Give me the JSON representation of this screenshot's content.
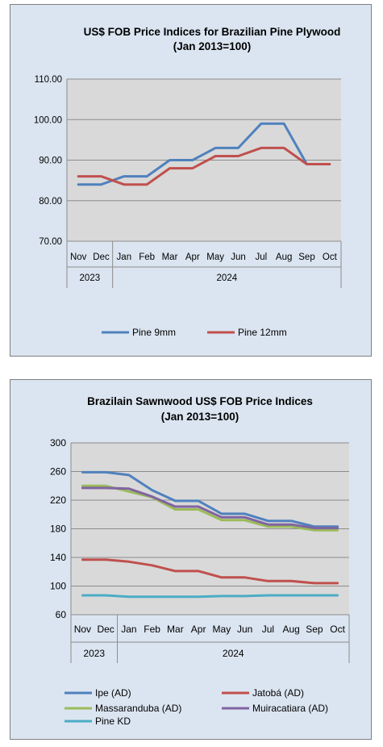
{
  "chart_data": [
    {
      "type": "line",
      "title": "US$ FOB Price Indices for Brazilian  Pine Plywood",
      "subtitle": "(Jan 2013=100)",
      "categories": [
        "Nov",
        "Dec",
        "Jan",
        "Feb",
        "Mar",
        "Apr",
        "May",
        "Jun",
        "Jul",
        "Aug",
        "Sep",
        "Oct"
      ],
      "year_groups": [
        {
          "label": "2023",
          "count": 2
        },
        {
          "label": "2024",
          "count": 10
        }
      ],
      "y_ticks": [
        "110.00",
        "100.00",
        "90.00",
        "80.00",
        "70.00"
      ],
      "ylim": [
        70,
        110
      ],
      "grid": true,
      "legend_position": "bottom",
      "series": [
        {
          "name": "Pine 9mm",
          "color": "#4f81bd",
          "values": [
            84,
            84,
            86,
            86,
            90,
            90,
            93,
            93,
            99,
            99,
            89,
            89
          ]
        },
        {
          "name": "Pine 12mm",
          "color": "#c0504d",
          "values": [
            86,
            86,
            84,
            84,
            88,
            88,
            91,
            91,
            93,
            93,
            89,
            89
          ]
        }
      ]
    },
    {
      "type": "line",
      "title": "Brazilain Sawnwood US$ FOB Price Indices",
      "subtitle": "(Jan 2013=100)",
      "categories": [
        "Nov",
        "Dec",
        "Jan",
        "Feb",
        "Mar",
        "Apr",
        "May",
        "Jun",
        "Jul",
        "Aug",
        "Sep",
        "Oct"
      ],
      "year_groups": [
        {
          "label": "2023",
          "count": 2
        },
        {
          "label": "2024",
          "count": 10
        }
      ],
      "y_ticks": [
        "300",
        "260",
        "220",
        "180",
        "140",
        "100",
        "60"
      ],
      "ylim": [
        60,
        300
      ],
      "grid": true,
      "legend_position": "bottom",
      "series": [
        {
          "name": "Ipe (AD)",
          "color": "#4f81bd",
          "values": [
            259,
            259,
            255,
            234,
            219,
            219,
            201,
            201,
            191,
            191,
            183,
            183
          ]
        },
        {
          "name": "Jatobá (AD)",
          "color": "#c0504d",
          "values": [
            137,
            137,
            134,
            129,
            121,
            121,
            112,
            112,
            107,
            107,
            104,
            104
          ]
        },
        {
          "name": "Massaranduba (AD)",
          "color": "#9bbb59",
          "values": [
            240,
            240,
            232,
            224,
            207,
            207,
            192,
            192,
            183,
            183,
            178,
            178
          ]
        },
        {
          "name": "Muiracatiara (AD)",
          "color": "#8064a2",
          "values": [
            237,
            237,
            236,
            225,
            211,
            211,
            196,
            196,
            186,
            186,
            181,
            181
          ]
        },
        {
          "name": "Pine KD",
          "color": "#4bacc6",
          "values": [
            87,
            87,
            85,
            85,
            85,
            85,
            86,
            86,
            87,
            87,
            87,
            87
          ]
        }
      ]
    }
  ]
}
